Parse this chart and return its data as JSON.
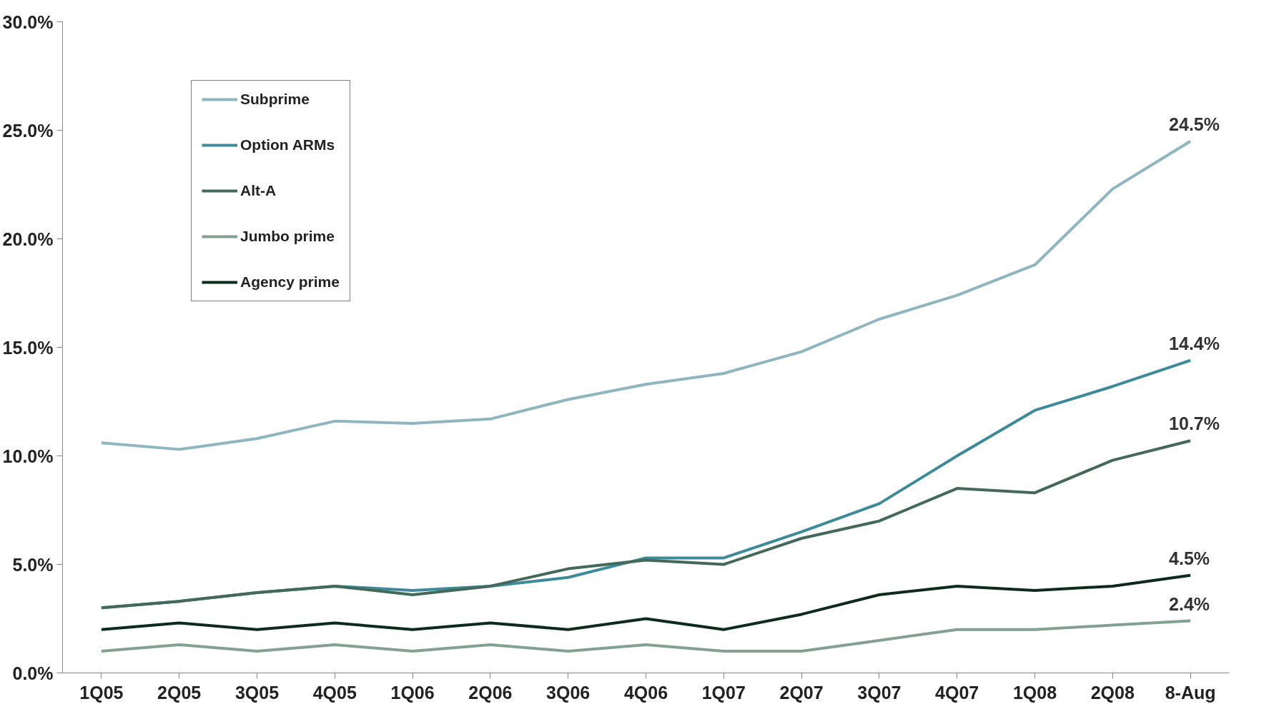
{
  "chart_data": {
    "type": "line",
    "categories": [
      "1Q05",
      "2Q05",
      "3Q05",
      "4Q05",
      "1Q06",
      "2Q06",
      "3Q06",
      "4Q06",
      "1Q07",
      "2Q07",
      "3Q07",
      "4Q07",
      "1Q08",
      "2Q08",
      "8-Aug"
    ],
    "series": [
      {
        "name": "Subprime",
        "color": "#8fb5bf",
        "values": [
          10.6,
          10.3,
          10.8,
          11.6,
          11.5,
          11.7,
          12.6,
          13.3,
          13.8,
          14.8,
          16.3,
          17.4,
          18.8,
          22.3,
          24.5
        ],
        "value_labels": [
          null,
          null,
          null,
          null,
          null,
          null,
          null,
          null,
          null,
          null,
          null,
          null,
          null,
          null,
          "24.5%"
        ]
      },
      {
        "name": "Option ARMs",
        "color": "#3f8a99",
        "values": [
          3.0,
          3.3,
          3.7,
          4.0,
          3.8,
          4.0,
          4.4,
          5.3,
          5.3,
          6.5,
          7.8,
          10.0,
          12.1,
          13.2,
          14.4
        ],
        "value_labels": [
          null,
          null,
          null,
          null,
          null,
          null,
          null,
          null,
          null,
          null,
          null,
          null,
          null,
          null,
          "14.4%"
        ]
      },
      {
        "name": "Alt-A",
        "color": "#44685a",
        "values": [
          3.0,
          3.3,
          3.7,
          4.0,
          3.6,
          4.0,
          4.8,
          5.2,
          5.0,
          6.2,
          7.0,
          8.5,
          8.3,
          9.8,
          10.7
        ],
        "value_labels": [
          null,
          null,
          null,
          null,
          null,
          null,
          null,
          null,
          null,
          null,
          null,
          null,
          null,
          null,
          "10.7%"
        ]
      },
      {
        "name": "Jumbo prime",
        "color": "#83a090",
        "values": [
          1.0,
          1.3,
          1.0,
          1.3,
          1.0,
          1.3,
          1.0,
          1.3,
          1.0,
          1.0,
          1.5,
          2.0,
          2.0,
          2.2,
          2.4
        ],
        "value_labels": [
          null,
          null,
          null,
          null,
          null,
          null,
          null,
          null,
          null,
          null,
          null,
          null,
          null,
          null,
          "2.4%"
        ]
      },
      {
        "name": "Agency prime",
        "color": "#0d2a1c",
        "values": [
          2.0,
          2.3,
          2.0,
          2.3,
          2.0,
          2.3,
          2.0,
          2.5,
          2.0,
          2.7,
          3.6,
          4.0,
          3.8,
          4.0,
          4.5
        ],
        "value_labels": [
          null,
          null,
          null,
          null,
          null,
          null,
          null,
          null,
          null,
          null,
          null,
          null,
          null,
          null,
          "4.5%"
        ]
      }
    ],
    "ylim": [
      0,
      30
    ],
    "yticks": [
      {
        "value": 0,
        "label": "0.0%"
      },
      {
        "value": 5,
        "label": "5.0%"
      },
      {
        "value": 10,
        "label": "10.0%"
      },
      {
        "value": 15,
        "label": "15.0%"
      },
      {
        "value": 20,
        "label": "20.0%"
      },
      {
        "value": 25,
        "label": "25.0%"
      },
      {
        "value": 30,
        "label": "30.0%"
      }
    ],
    "grid": false,
    "legend": "top left",
    "marker": "none",
    "line_style": "solid"
  }
}
